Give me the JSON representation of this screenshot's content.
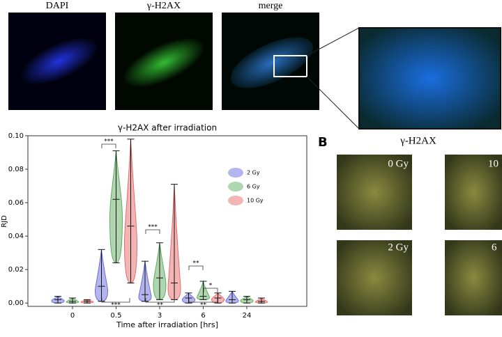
{
  "panel_a": {
    "image_labels": [
      "DAPI",
      "γ-H2AX",
      "merge"
    ]
  },
  "chart_data": {
    "type": "violin",
    "title": "γ-H2AX after irradiation",
    "x_label": "Time after irradiation [hrs]",
    "y_label": "RJD",
    "categories": [
      "0",
      "0.5",
      "3",
      "6",
      "24"
    ],
    "series": [
      {
        "name": "2 Gy",
        "color": "#6b6bdc",
        "min": [
          0,
          0.001,
          0.001,
          0,
          0
        ],
        "median": [
          0.002,
          0.01,
          0.005,
          0.003,
          0.002
        ],
        "max": [
          0.004,
          0.032,
          0.025,
          0.006,
          0.007
        ]
      },
      {
        "name": "6 Gy",
        "color": "#5fae5f",
        "min": [
          0,
          0.024,
          0.002,
          0.002,
          0
        ],
        "median": [
          0.001,
          0.062,
          0.015,
          0.004,
          0.002
        ],
        "max": [
          0.003,
          0.091,
          0.036,
          0.013,
          0.004
        ]
      },
      {
        "name": "10 Gy",
        "color": "#e86a6a",
        "min": [
          0,
          0.012,
          0.002,
          0,
          0
        ],
        "median": [
          0.001,
          0.046,
          0.012,
          0.003,
          0.001
        ],
        "max": [
          0.002,
          0.098,
          0.071,
          0.006,
          0.003
        ]
      }
    ],
    "ylim": [
      -0.002,
      0.1
    ],
    "yticks": [
      {
        "value": 0,
        "label": "0.00"
      },
      {
        "value": 0.02,
        "label": "0.02"
      },
      {
        "value": 0.04,
        "label": "0.04"
      },
      {
        "value": 0.06,
        "label": "0.06"
      },
      {
        "value": 0.08,
        "label": "0.08"
      },
      {
        "value": 0.1,
        "label": "0.10"
      }
    ],
    "annotations": [
      "***",
      "***",
      "***",
      "**",
      "**",
      "**",
      "*"
    ],
    "legend": "upper right"
  },
  "panel_b": {
    "letter": "B",
    "title": "γ-H2AX",
    "image_labels": [
      "0 Gy",
      "10",
      "2 Gy",
      "6"
    ]
  }
}
